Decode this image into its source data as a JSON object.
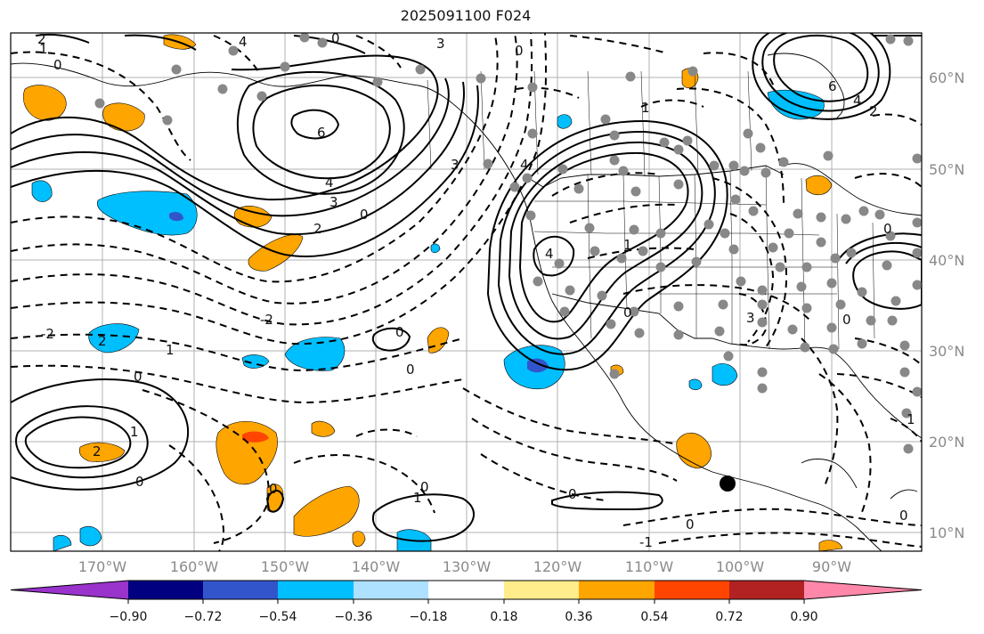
{
  "map": {
    "title": "2025091100 F024",
    "lat_labels": [
      "60°N",
      "50°N",
      "40°N",
      "30°N",
      "20°N",
      "10°N"
    ],
    "lon_labels": [
      "170°W",
      "160°W",
      "150°W",
      "140°W",
      "130°W",
      "120°W",
      "110°W",
      "100°W",
      "90°W"
    ],
    "contour_labels": [
      "2",
      "1",
      "0",
      "4",
      "6",
      "3",
      "2",
      "0",
      "6",
      "4",
      "2",
      "1",
      "0",
      "-2",
      "1",
      "-2",
      "0",
      "0",
      "1",
      "-1",
      "0",
      "0",
      "-1",
      "4",
      "3",
      "2",
      "1",
      "0",
      "3",
      "1",
      "-2",
      "0"
    ]
  },
  "colorbar": {
    "tick_labels": [
      "−0.90",
      "−0.72",
      "−0.54",
      "−0.36",
      "−0.18",
      "0.18",
      "0.36",
      "0.54",
      "0.72",
      "0.90"
    ],
    "colors": [
      "#9933cc",
      "#000080",
      "#3355cc",
      "#00bfff",
      "#aee0ff",
      "#ffffff",
      "#ffec8b",
      "#ffa500",
      "#ff4500",
      "#b22222",
      "#ff88aa"
    ]
  },
  "legend_colors": {
    "positive_fill": "#ffa500",
    "strong_positive_fill": "#ff4500",
    "negative_fill": "#00bfff",
    "strong_negative_fill": "#3355cc",
    "station_dot": "#888888",
    "marker_dot": "#000000"
  }
}
